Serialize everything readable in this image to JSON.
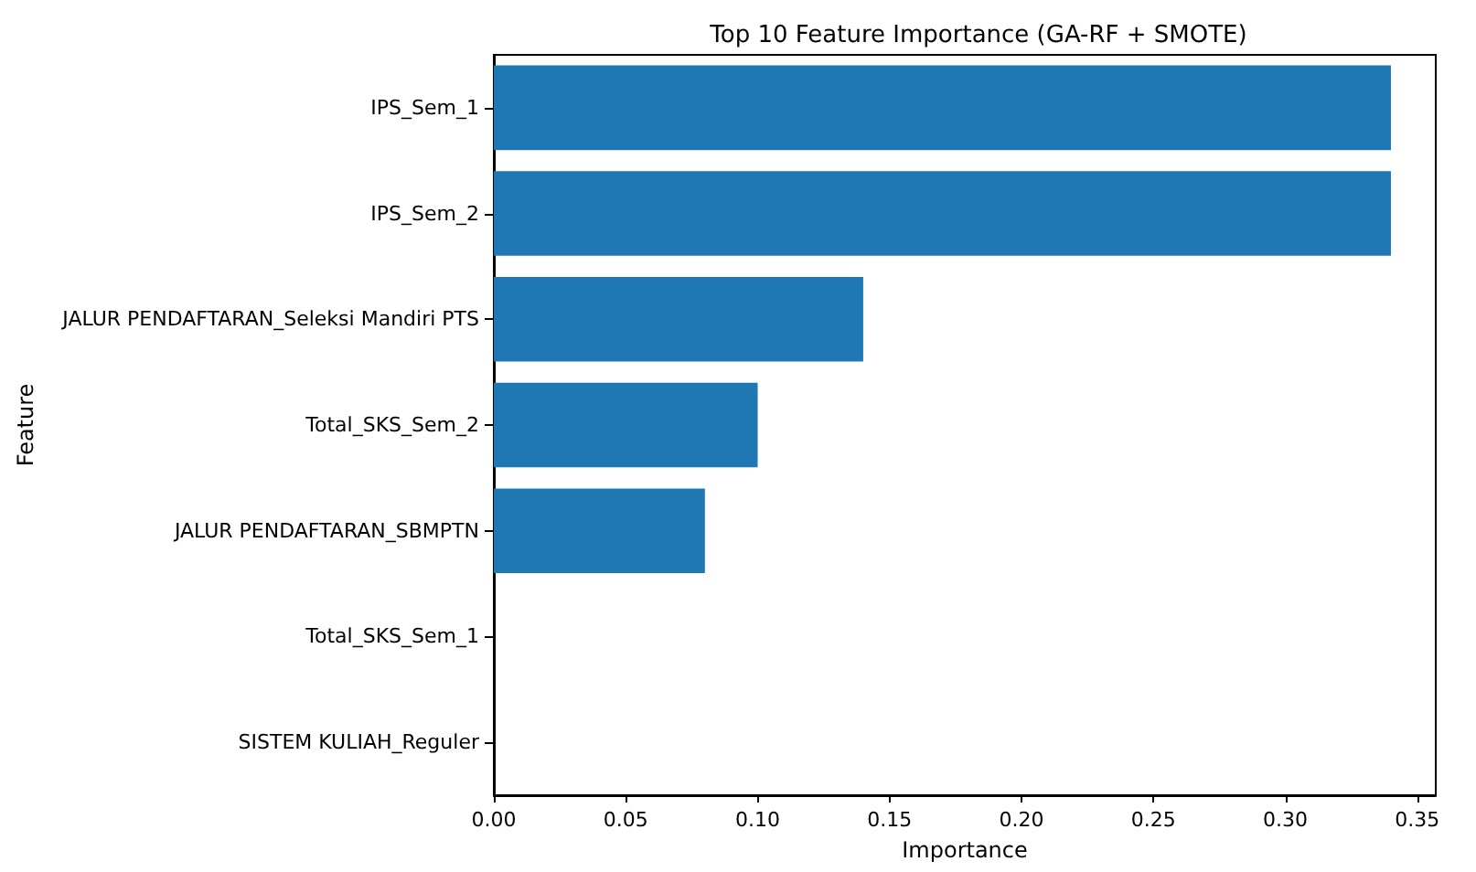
{
  "chart_data": {
    "type": "bar",
    "orientation": "horizontal",
    "title": "Top 10 Feature Importance (GA-RF + SMOTE)",
    "xlabel": "Importance",
    "ylabel": "Feature",
    "categories": [
      "IPS_Sem_1",
      "IPS_Sem_2",
      "JALUR PENDAFTARAN_Seleksi Mandiri PTS",
      "Total_SKS_Sem_2",
      "JALUR PENDAFTARAN_SBMPTN",
      "Total_SKS_Sem_1",
      "SISTEM KULIAH_Reguler"
    ],
    "values": [
      0.34,
      0.34,
      0.14,
      0.1,
      0.08,
      0,
      0
    ],
    "color": "#1f77b4",
    "xlim": [
      0,
      0.357
    ],
    "xticks": [
      {
        "value": 0,
        "label": "0.00"
      },
      0.05,
      {
        "value": 0.1,
        "label": "0.10"
      },
      0.15,
      {
        "value": 0.2,
        "label": "0.20"
      },
      0.25,
      {
        "value": 0.3,
        "label": "0.30"
      },
      0.35
    ],
    "grid": false
  }
}
